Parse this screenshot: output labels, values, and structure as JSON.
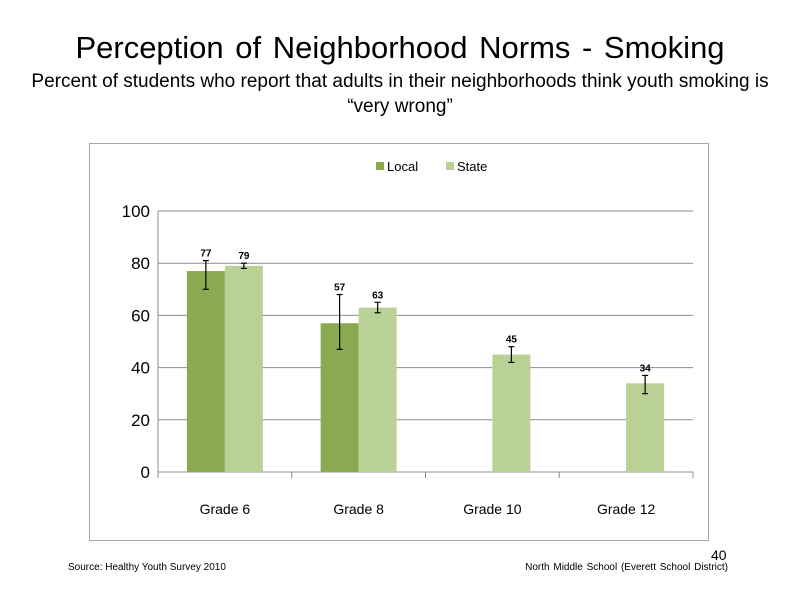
{
  "slide": {
    "title": "Perception of Neighborhood  Norms - Smoking",
    "subtitle": "Percent of students who report that adults in their neighborhoods think youth smoking is “very wrong”",
    "source": "Source: Healthy Youth Survey 2010",
    "school": "North Middle  School (Everett School District)",
    "page_number": "40"
  },
  "chart_data": {
    "type": "bar",
    "categories": [
      "Grade 6",
      "Grade 8",
      "Grade 10",
      "Grade 12"
    ],
    "series": [
      {
        "name": "Local",
        "color": "#8aaa51",
        "values": [
          77,
          57,
          null,
          null
        ],
        "labels": [
          "77",
          "57",
          "",
          ""
        ],
        "error_low": [
          70,
          47,
          null,
          null
        ],
        "error_high": [
          81,
          68,
          null,
          null
        ]
      },
      {
        "name": "State",
        "color": "#bad196",
        "values": [
          79,
          63,
          45,
          34
        ],
        "labels": [
          "79",
          "63",
          "45",
          "34"
        ],
        "error_low": [
          78,
          61,
          42,
          30
        ],
        "error_high": [
          80,
          65,
          48,
          37
        ]
      }
    ],
    "y_ticks": [
      "0",
      "20",
      "40",
      "60",
      "80",
      "100"
    ],
    "ylim": [
      0,
      100
    ],
    "y_tick_step": 20,
    "grid": true,
    "legend_position": "top-center"
  }
}
